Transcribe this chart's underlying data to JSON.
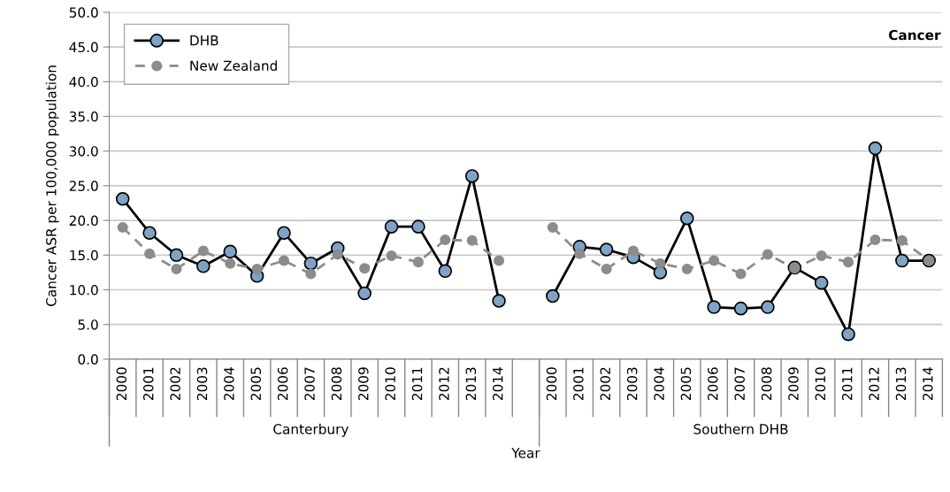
{
  "chart_data": {
    "type": "line",
    "title": "Cancer",
    "xlabel": "Year",
    "ylabel": "Cancer ASR per 100,000 population",
    "categories": [
      "2000",
      "2001",
      "2002",
      "2003",
      "2004",
      "2005",
      "2006",
      "2007",
      "2008",
      "2009",
      "2010",
      "2011",
      "2012",
      "2013",
      "2014",
      null,
      "2000",
      "2001",
      "2002",
      "2003",
      "2004",
      "2005",
      "2006",
      "2007",
      "2008",
      "2009",
      "2010",
      "2011",
      "2012",
      "2013",
      "2014"
    ],
    "annotations": [
      "Canterbury",
      "Southern DHB"
    ],
    "series": [
      {
        "name": "DHB",
        "color": "#7ea3c6",
        "line_style": "solid",
        "values": [
          23.1,
          18.2,
          15.0,
          13.4,
          15.5,
          12.0,
          18.2,
          13.8,
          16.0,
          9.5,
          19.1,
          19.1,
          12.7,
          26.4,
          8.4,
          null,
          9.1,
          16.2,
          15.8,
          14.7,
          12.5,
          20.3,
          7.5,
          7.3,
          7.5,
          13.2,
          11.0,
          3.6,
          30.4,
          14.2,
          14.2
        ]
      },
      {
        "name": "New Zealand",
        "color": "#8c8c8c",
        "line_style": "dashed",
        "values": [
          19.0,
          15.2,
          13.0,
          15.6,
          13.8,
          13.0,
          14.2,
          12.3,
          15.1,
          13.1,
          14.9,
          14.0,
          17.2,
          17.1,
          14.2,
          null,
          19.0,
          15.2,
          13.0,
          15.6,
          13.8,
          13.0,
          14.2,
          12.3,
          15.1,
          13.1,
          14.9,
          14.0,
          17.2,
          17.1,
          14.2
        ]
      }
    ],
    "ylim": [
      0,
      50
    ],
    "yticks": [
      {
        "value": 0,
        "label": "0.0"
      },
      {
        "value": 5,
        "label": "5.0"
      },
      {
        "value": 10,
        "label": "10.0"
      },
      {
        "value": 15,
        "label": "15.0"
      },
      {
        "value": 20,
        "label": "20.0"
      },
      {
        "value": 25,
        "label": "25.0"
      },
      {
        "value": 30,
        "label": "30.0"
      },
      {
        "value": 35,
        "label": "35.0"
      },
      {
        "value": 40,
        "label": "40.0"
      },
      {
        "value": 45,
        "label": "45.0"
      },
      {
        "value": 50,
        "label": "50.0"
      }
    ],
    "grid": "y",
    "legend": "top left",
    "marker": "circle"
  }
}
